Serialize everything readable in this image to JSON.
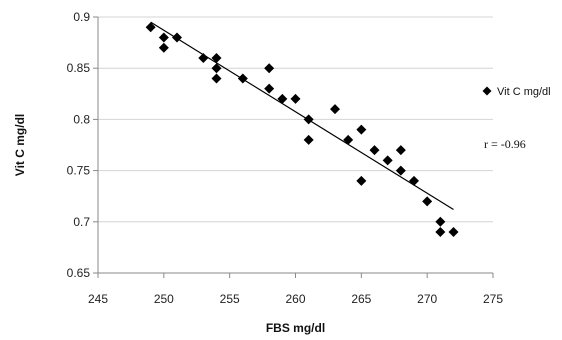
{
  "chart_data": {
    "type": "scatter",
    "xlabel": "FBS mg/dl",
    "ylabel": "Vit C mg/dl",
    "xlim": [
      245,
      275
    ],
    "ylim": [
      0.65,
      0.9
    ],
    "x_ticks": [
      245,
      250,
      255,
      260,
      265,
      270,
      275
    ],
    "y_ticks": [
      0.65,
      0.7,
      0.75,
      0.8,
      0.85,
      0.9
    ],
    "x_tick_labels": [
      "245",
      "250",
      "255",
      "260",
      "265",
      "270",
      "275"
    ],
    "y_tick_labels": [
      "0.65",
      "0.7",
      "0.75",
      "0.8",
      "0.85",
      "0.9"
    ],
    "grid": "horizontal",
    "legend_position": "right",
    "marker": "diamond",
    "marker_color": "#000000",
    "series": [
      {
        "name": "Vit C mg/dl",
        "points": [
          {
            "x": 249,
            "y": 0.89
          },
          {
            "x": 250,
            "y": 0.88
          },
          {
            "x": 250,
            "y": 0.87
          },
          {
            "x": 251,
            "y": 0.88
          },
          {
            "x": 253,
            "y": 0.86
          },
          {
            "x": 254,
            "y": 0.86
          },
          {
            "x": 254,
            "y": 0.85
          },
          {
            "x": 254,
            "y": 0.84
          },
          {
            "x": 256,
            "y": 0.84
          },
          {
            "x": 258,
            "y": 0.85
          },
          {
            "x": 258,
            "y": 0.83
          },
          {
            "x": 259,
            "y": 0.82
          },
          {
            "x": 260,
            "y": 0.82
          },
          {
            "x": 261,
            "y": 0.8
          },
          {
            "x": 261,
            "y": 0.78
          },
          {
            "x": 263,
            "y": 0.81
          },
          {
            "x": 264,
            "y": 0.78
          },
          {
            "x": 265,
            "y": 0.79
          },
          {
            "x": 265,
            "y": 0.74
          },
          {
            "x": 266,
            "y": 0.77
          },
          {
            "x": 267,
            "y": 0.76
          },
          {
            "x": 268,
            "y": 0.77
          },
          {
            "x": 268,
            "y": 0.75
          },
          {
            "x": 269,
            "y": 0.74
          },
          {
            "x": 270,
            "y": 0.72
          },
          {
            "x": 271,
            "y": 0.7
          },
          {
            "x": 271,
            "y": 0.69
          },
          {
            "x": 272,
            "y": 0.69
          }
        ]
      }
    ],
    "trendline": {
      "start": {
        "x": 249,
        "y": 0.895
      },
      "end": {
        "x": 272,
        "y": 0.712
      }
    },
    "legend": {
      "label": "Vit C mg/dl"
    },
    "annotation": {
      "text": "r = -0.96"
    }
  }
}
